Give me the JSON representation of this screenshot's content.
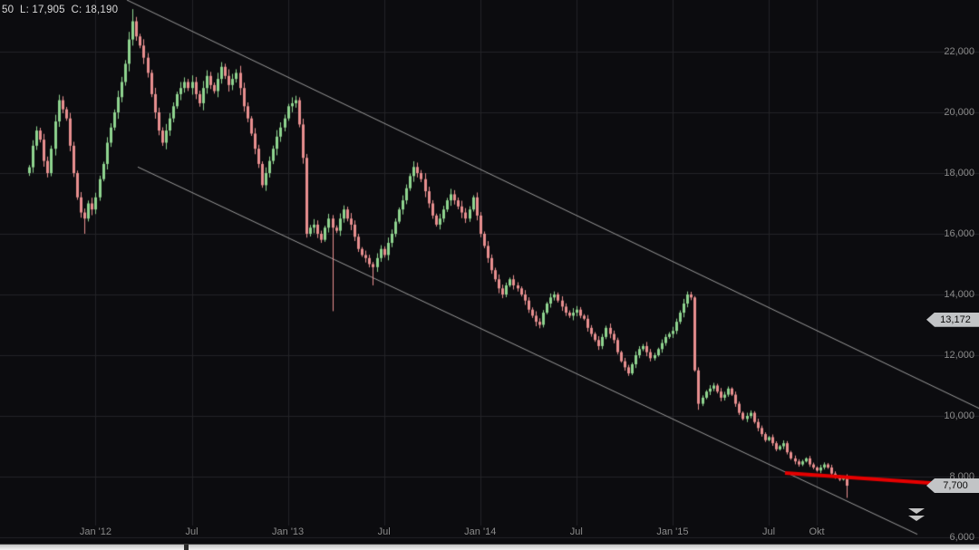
{
  "info_bar": {
    "text": "50  L: 17,905  C: 18,190"
  },
  "chart_data": {
    "type": "candlestick",
    "title": "",
    "xlabel": "",
    "ylabel": "",
    "legend": "none",
    "grid": "on",
    "ylim": [
      5582,
      23701
    ],
    "y_ticks": [
      22000,
      20000,
      18000,
      16000,
      14000,
      12000,
      10000,
      8000,
      6000
    ],
    "y_tick_labels": [
      "22,000",
      "20,000",
      "18,000",
      "16,000",
      "14,000",
      "12,000",
      "10,000",
      "8,000",
      "6,000"
    ],
    "x_ticks": [
      {
        "label": "Jan '12",
        "i": 18
      },
      {
        "label": "Jul",
        "i": 44
      },
      {
        "label": "Jan '13",
        "i": 70
      },
      {
        "label": "Jul",
        "i": 96
      },
      {
        "label": "Jan '14",
        "i": 122
      },
      {
        "label": "Jul",
        "i": 148
      },
      {
        "label": "Jan '15",
        "i": 174
      },
      {
        "label": "Jul",
        "i": 200
      },
      {
        "label": "Okt",
        "i": 213
      }
    ],
    "first_open": 18000,
    "closes": [
      18190,
      18900,
      19400,
      19100,
      18400,
      18000,
      18800,
      19700,
      20400,
      20100,
      19800,
      18900,
      18000,
      17200,
      16700,
      16500,
      17000,
      16800,
      17200,
      17800,
      18300,
      19000,
      19500,
      20000,
      20500,
      21000,
      21600,
      22400,
      23000,
      22500,
      22200,
      21800,
      21300,
      20600,
      20000,
      19400,
      19000,
      19400,
      19800,
      20200,
      20600,
      20800,
      21000,
      20800,
      21000,
      20600,
      20300,
      20800,
      21200,
      20900,
      20700,
      21100,
      21500,
      21200,
      20900,
      21100,
      21300,
      20800,
      20200,
      19800,
      19300,
      18800,
      18300,
      17600,
      18000,
      18400,
      18800,
      19200,
      19500,
      19800,
      20200,
      20300,
      20400,
      19600,
      18500,
      16000,
      16200,
      16300,
      16000,
      15800,
      16200,
      16500,
      16200,
      16100,
      16500,
      16800,
      16500,
      16300,
      15900,
      15500,
      15300,
      15200,
      15000,
      14900,
      15200,
      15500,
      15300,
      15700,
      16000,
      16400,
      16800,
      17100,
      17500,
      17900,
      18200,
      18000,
      17800,
      17400,
      17000,
      16600,
      16300,
      16500,
      16800,
      17100,
      17300,
      17100,
      16900,
      16700,
      16500,
      16800,
      17200,
      16600,
      16000,
      15600,
      15200,
      14800,
      14500,
      14200,
      14000,
      14300,
      14500,
      14300,
      14200,
      14000,
      13800,
      13500,
      13300,
      13100,
      13000,
      13400,
      13700,
      13900,
      14000,
      13800,
      13600,
      13400,
      13300,
      13400,
      13500,
      13300,
      13200,
      12900,
      12700,
      12500,
      12300,
      12600,
      12900,
      12700,
      12500,
      12100,
      11800,
      11600,
      11400,
      11700,
      12000,
      12200,
      12300,
      12100,
      11900,
      12000,
      12200,
      12400,
      12600,
      12700,
      12800,
      13100,
      13400,
      13700,
      14000,
      13900,
      11500,
      10400,
      10600,
      10800,
      10900,
      11000,
      10800,
      10600,
      10700,
      10900,
      10700,
      10400,
      10100,
      9900,
      10000,
      10100,
      9800,
      9600,
      9400,
      9200,
      9300,
      9100,
      8900,
      9000,
      9100,
      8800,
      8600,
      8500,
      8400,
      8500,
      8600,
      8400,
      8300,
      8200,
      8300,
      8400,
      8300,
      8100,
      8000,
      7900,
      8000,
      7700
    ],
    "wick_ratio": 0.008,
    "special_wicks": {
      "0": {
        "low": 17905
      },
      "15": {
        "low": 16000
      },
      "28": {
        "high": 23400
      },
      "82": {
        "low": 13450
      },
      "93": {
        "low": 14300
      },
      "178": {
        "high": 14100
      },
      "181": {
        "low": 10200
      },
      "221": {
        "low": 7300
      }
    },
    "trendlines": [
      {
        "x1": 140,
        "p1": 23700,
        "x2": 1080,
        "p2": 10250,
        "color": "#9b9b9b",
        "width": 1
      },
      {
        "x1": 152,
        "p1": 18200,
        "x2": 1012,
        "p2": 6100,
        "color": "#9b9b9b",
        "width": 1
      }
    ],
    "support_line": {
      "x1": 866,
      "p1": 8120,
      "x2": 1080,
      "p2": 7680,
      "color": "#e60000",
      "width": 4
    },
    "price_badges": [
      {
        "label": "13,172",
        "price": 13172
      },
      {
        "label": "7,700",
        "price": 7700
      }
    ],
    "colors": {
      "bg": "#0c0c0f",
      "grid": "#232327",
      "up": "#8fd48f",
      "down": "#e88f8f",
      "axis_text": "#8a8a8a",
      "badge_bg": "#c2c4c6",
      "support": "#e60000"
    },
    "plot": {
      "x0": 32,
      "dx": 4.08,
      "candle_w": 3,
      "xgrid_bottom": 580
    }
  }
}
